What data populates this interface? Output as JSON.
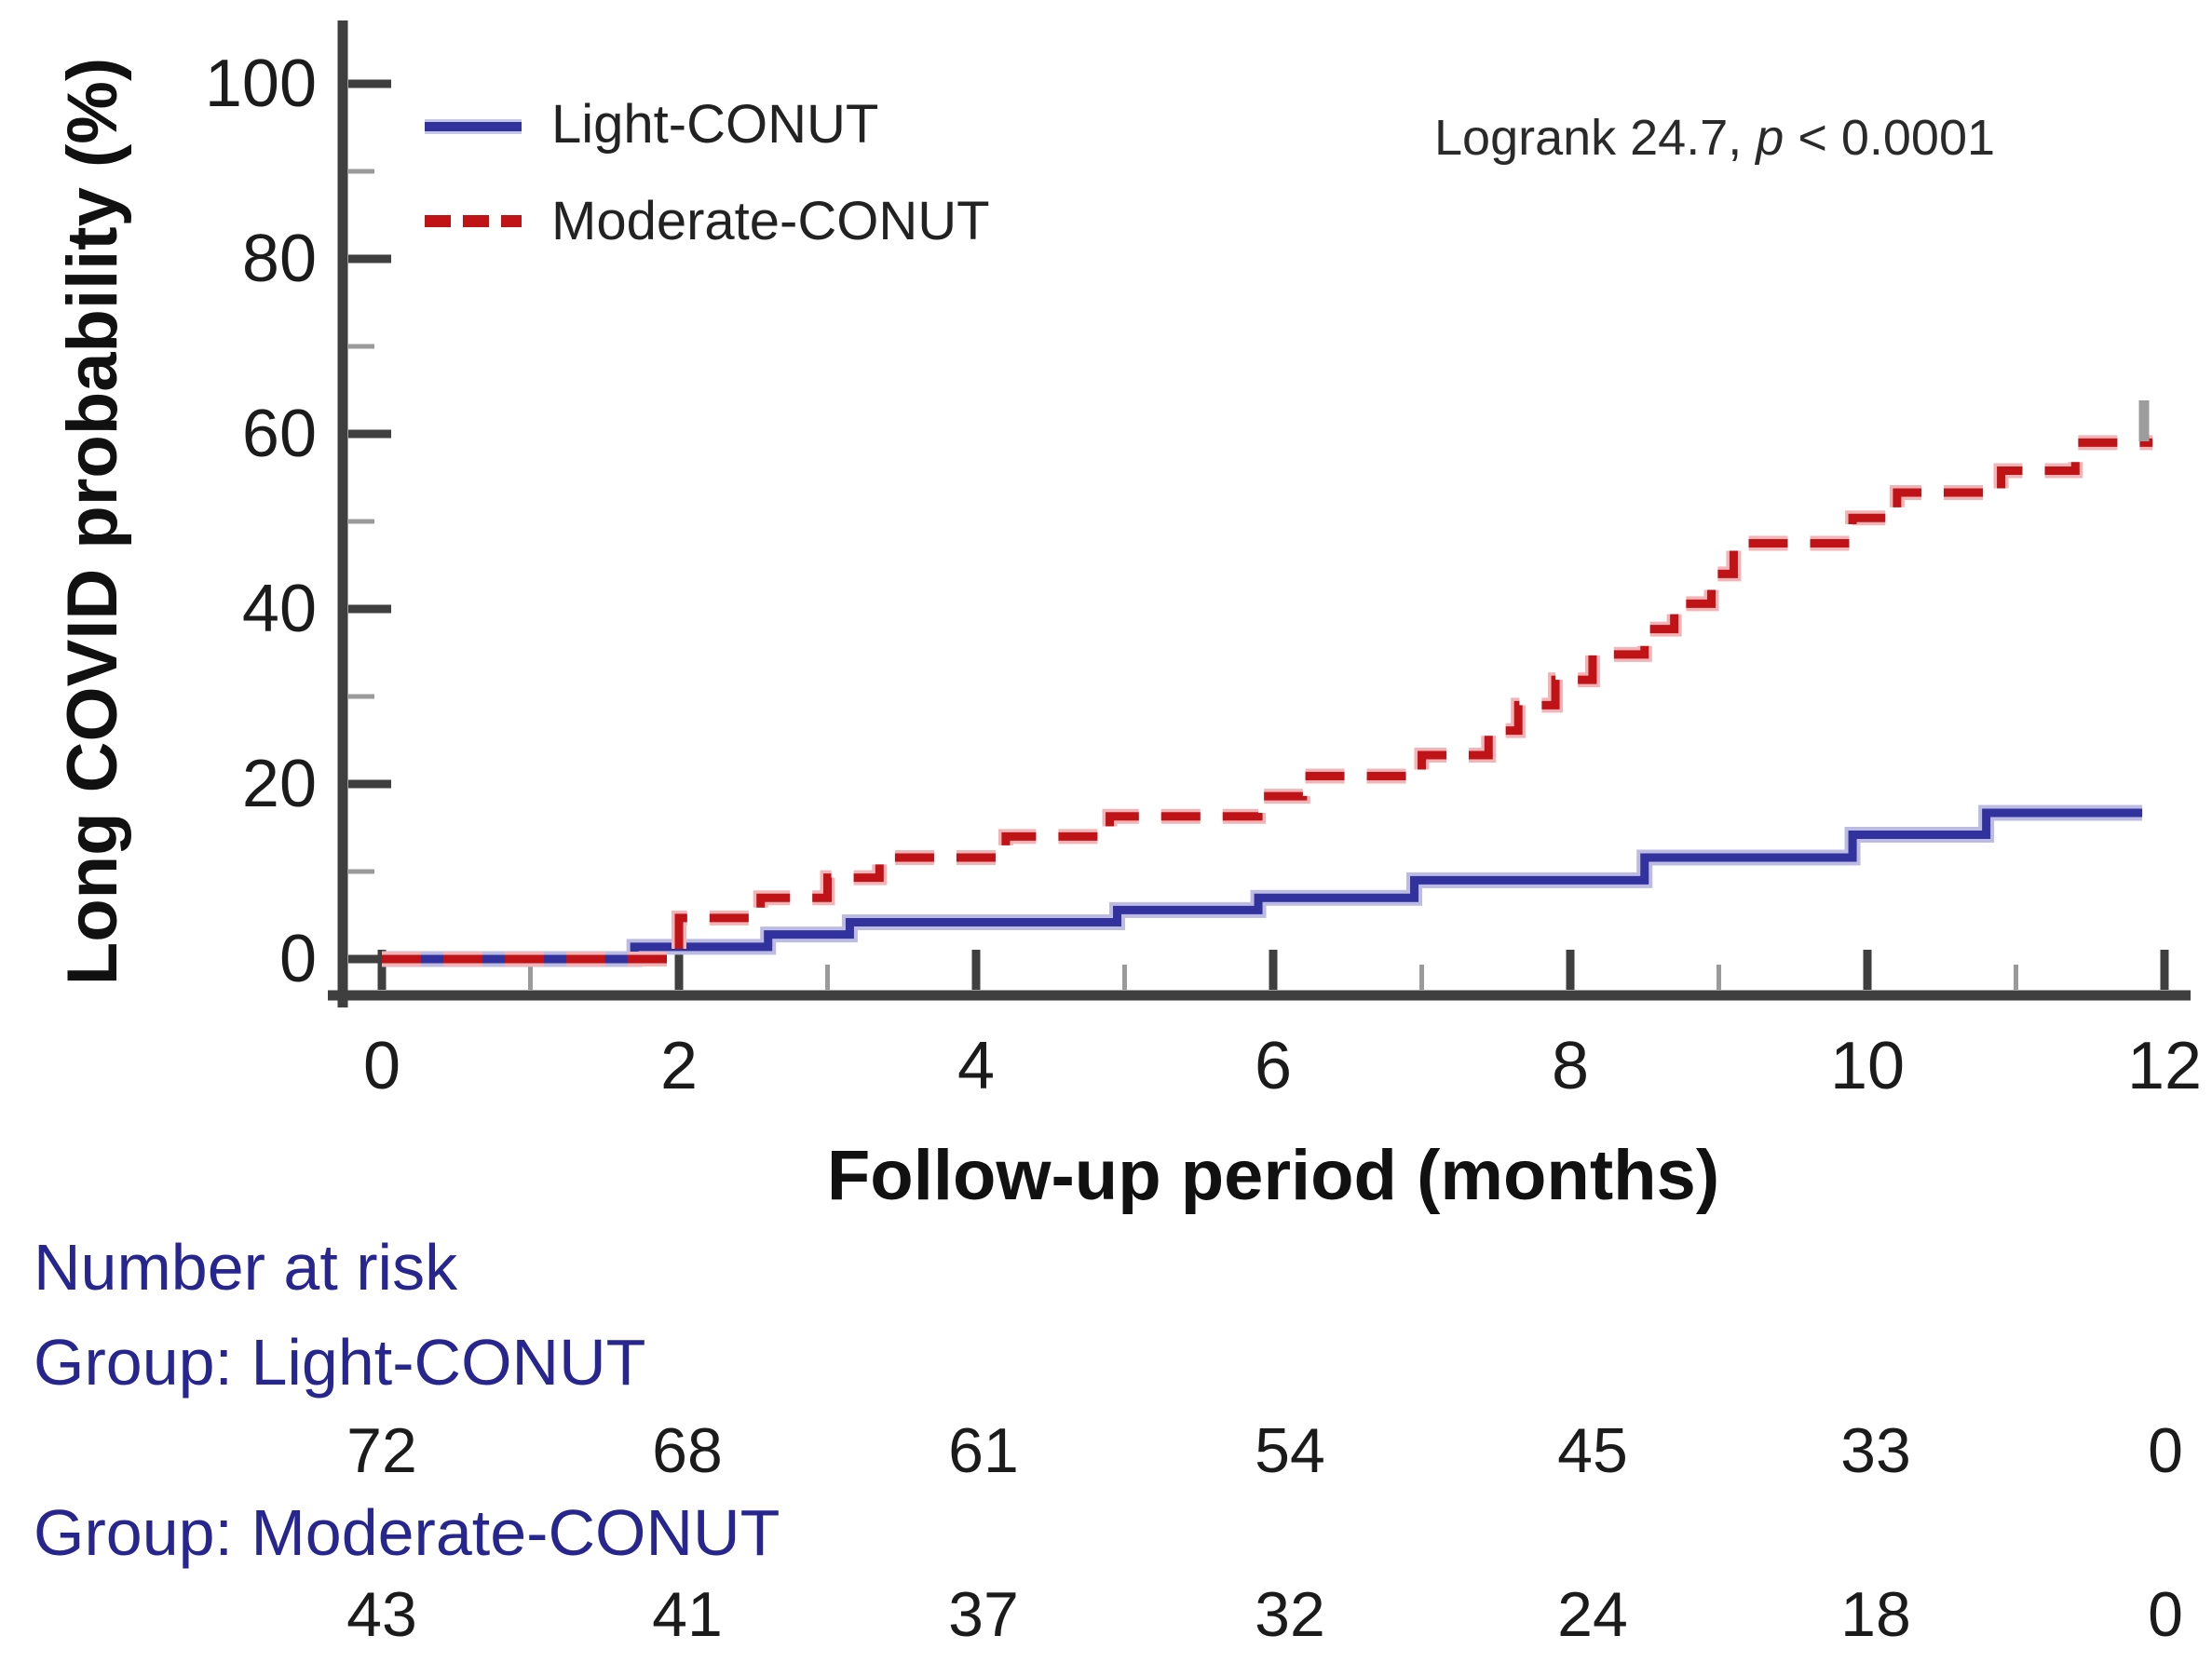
{
  "figure": {
    "y_axis": {
      "label": "Long COVID probability (%)",
      "ticks": [
        0,
        20,
        40,
        60,
        80,
        100
      ],
      "minor_ticks": [
        10,
        30,
        50,
        70,
        90
      ],
      "range": [
        0,
        100
      ]
    },
    "x_axis": {
      "label": "Follow-up period (months)",
      "ticks": [
        0,
        2,
        4,
        6,
        8,
        10,
        12
      ],
      "minor_ticks": [
        1,
        3,
        5,
        7,
        9,
        11
      ],
      "range": [
        0,
        12
      ]
    },
    "legend": [
      {
        "label": "Light-CONUT",
        "color": "#32329e",
        "style": "solid"
      },
      {
        "label": "Moderate-CONUT",
        "color": "#c01318",
        "style": "dashed"
      }
    ],
    "annotation": {
      "text_before_p": "Logrank 24.7, ",
      "p_symbol": "p",
      "text_after_p": " < 0.0001"
    }
  },
  "chart_data": {
    "type": "line",
    "subtype": "kaplan-meier-step",
    "xlabel": "Follow-up period (months)",
    "ylabel": "Long COVID probability (%)",
    "xlim": [
      0,
      12
    ],
    "ylim": [
      0,
      100
    ],
    "grid": false,
    "legend_position": "upper-left",
    "annotation": "Logrank 24.7, p < 0.0001",
    "series": [
      {
        "name": "Light-CONUT",
        "color": "#32329e",
        "line_style": "solid",
        "points": [
          [
            0,
            0
          ],
          [
            1.7,
            1.4
          ],
          [
            2.6,
            2.8
          ],
          [
            3.15,
            4.2
          ],
          [
            4.95,
            5.6
          ],
          [
            5.9,
            7.0
          ],
          [
            6.95,
            9.0
          ],
          [
            8.5,
            11.6
          ],
          [
            9.9,
            14.2
          ],
          [
            10.8,
            16.7
          ]
        ],
        "end_x": 11.85
      },
      {
        "name": "Moderate-CONUT",
        "color": "#c01318",
        "line_style": "dashed",
        "points": [
          [
            0,
            0
          ],
          [
            2.0,
            4.7
          ],
          [
            2.55,
            7.0
          ],
          [
            3.0,
            9.3
          ],
          [
            3.35,
            11.6
          ],
          [
            4.2,
            14.0
          ],
          [
            4.9,
            16.3
          ],
          [
            5.9,
            18.6
          ],
          [
            6.2,
            20.9
          ],
          [
            7.0,
            23.3
          ],
          [
            7.45,
            26.1
          ],
          [
            7.65,
            29.0
          ],
          [
            7.9,
            31.9
          ],
          [
            8.15,
            34.8
          ],
          [
            8.5,
            37.7
          ],
          [
            8.7,
            40.6
          ],
          [
            8.95,
            44.0
          ],
          [
            9.1,
            47.5
          ],
          [
            9.9,
            50.4
          ],
          [
            10.2,
            53.3
          ],
          [
            10.9,
            55.8
          ],
          [
            11.4,
            59.0
          ]
        ],
        "end_x": 11.92
      }
    ]
  },
  "risk_table": {
    "title": "Number at risk",
    "times": [
      0,
      2,
      4,
      6,
      8,
      10,
      12
    ],
    "groups": [
      {
        "label": "Group: Light-CONUT",
        "values": [
          "72",
          "68",
          "61",
          "54",
          "45",
          "33",
          "0"
        ]
      },
      {
        "label": "Group: Moderate-CONUT",
        "values": [
          "43",
          "41",
          "37",
          "32",
          "24",
          "18",
          "0"
        ]
      }
    ]
  }
}
